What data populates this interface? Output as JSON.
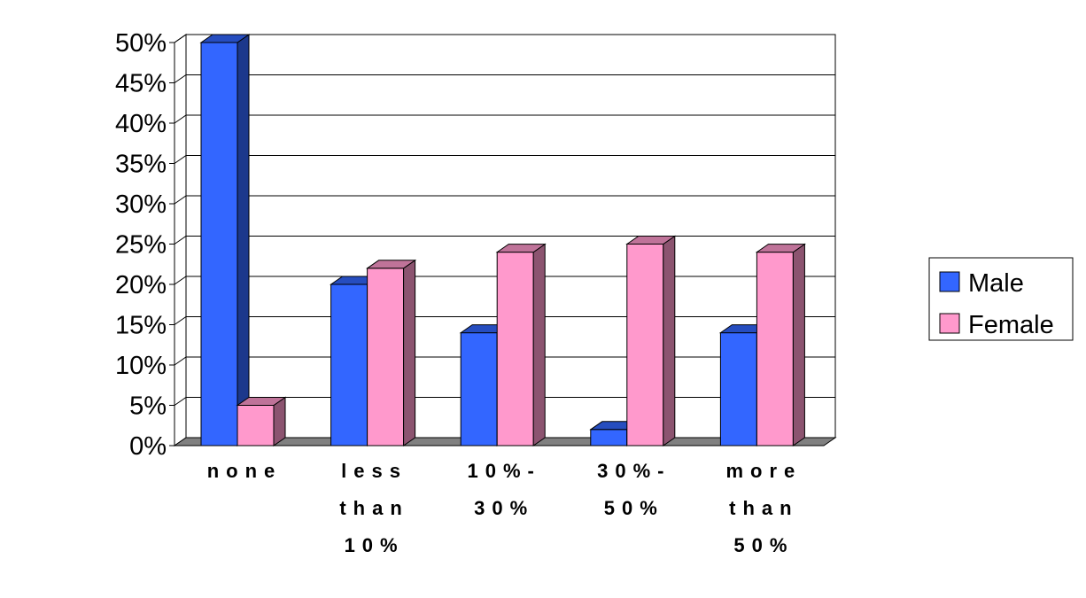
{
  "chart_data": {
    "type": "bar",
    "style": "3d-clustered",
    "categories": [
      [
        "none"
      ],
      [
        "less",
        "than",
        "10%"
      ],
      [
        "10%-",
        "30%"
      ],
      [
        "30%-",
        "50%"
      ],
      [
        "more",
        "than",
        "50%"
      ]
    ],
    "series": [
      {
        "name": "Male",
        "color": "#3366ff",
        "values": [
          50,
          20,
          14,
          2,
          14
        ]
      },
      {
        "name": "Female",
        "color": "#ff99cc",
        "values": [
          5,
          22,
          24,
          25,
          24
        ]
      }
    ],
    "y_ticks": [
      "0%",
      "5%",
      "10%",
      "15%",
      "20%",
      "25%",
      "30%",
      "35%",
      "40%",
      "45%",
      "50%"
    ],
    "ylim": [
      0,
      50
    ],
    "grid": true,
    "legend_position": "right",
    "title": "",
    "xlabel": "",
    "ylabel": ""
  }
}
